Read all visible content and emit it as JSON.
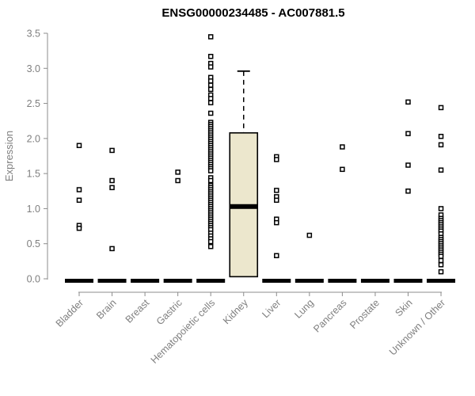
{
  "chart_data": {
    "type": "boxplot",
    "title": "ENSG00000234485 - AC007881.5",
    "ylabel": "Expression",
    "xlabel": "",
    "ylim": [
      0,
      3.5
    ],
    "ytick_labels": [
      "0.0",
      "0.5",
      "1.0",
      "1.5",
      "2.0",
      "2.5",
      "3.0",
      "3.5"
    ],
    "grid": false,
    "legend": "none",
    "categories": [
      "Bladder",
      "Brain",
      "Breast",
      "Gastric",
      "Hematopoietic cells",
      "Kidney",
      "Liver",
      "Lung",
      "Pancreas",
      "Prostate",
      "Skin",
      "Unknown / Other"
    ],
    "series": [
      {
        "category": "Bladder",
        "median": 0.0,
        "outliers": [
          1.9,
          1.27,
          1.12,
          0.76,
          0.72
        ]
      },
      {
        "category": "Brain",
        "median": 0.0,
        "outliers": [
          1.83,
          1.4,
          1.3,
          0.43
        ]
      },
      {
        "category": "Breast",
        "median": 0.0,
        "outliers": []
      },
      {
        "category": "Gastric",
        "median": 0.0,
        "outliers": [
          1.52,
          1.4
        ]
      },
      {
        "category": "Hematopoietic cells",
        "median": 0.0,
        "outliers": [
          3.45,
          3.17,
          3.07,
          3.02,
          2.87,
          2.82,
          2.76,
          2.7,
          2.62,
          2.57,
          2.51,
          2.36,
          2.23,
          2.2,
          2.17,
          2.14,
          2.11,
          2.08,
          2.05,
          2.02,
          1.99,
          1.96,
          1.93,
          1.9,
          1.87,
          1.84,
          1.81,
          1.78,
          1.75,
          1.72,
          1.69,
          1.66,
          1.63,
          1.6,
          1.57,
          1.54,
          1.44,
          1.4,
          1.33,
          1.3,
          1.27,
          1.24,
          1.21,
          1.18,
          1.15,
          1.12,
          1.09,
          1.06,
          1.03,
          1.0,
          0.97,
          0.94,
          0.91,
          0.88,
          0.85,
          0.82,
          0.79,
          0.76,
          0.73,
          0.7,
          0.65,
          0.61,
          0.57,
          0.53,
          0.46
        ]
      },
      {
        "category": "Kidney",
        "median": 1.03,
        "q1": 0.03,
        "q3": 2.08,
        "whisker_low": 0.03,
        "whisker_high": 2.96,
        "outliers": []
      },
      {
        "category": "Liver",
        "median": 0.0,
        "outliers": [
          1.74,
          1.7,
          1.26,
          1.17,
          1.12,
          0.85,
          0.8,
          0.33
        ]
      },
      {
        "category": "Lung",
        "median": 0.0,
        "outliers": [
          0.62
        ]
      },
      {
        "category": "Pancreas",
        "median": 0.0,
        "outliers": [
          1.88,
          1.56
        ]
      },
      {
        "category": "Prostate",
        "median": 0.0,
        "outliers": []
      },
      {
        "category": "Skin",
        "median": 0.0,
        "outliers": [
          2.52,
          2.07,
          1.62,
          1.25
        ]
      },
      {
        "category": "Unknown / Other",
        "median": 0.0,
        "outliers": [
          2.44,
          2.03,
          1.91,
          1.55,
          1.0,
          0.91,
          0.86,
          0.83,
          0.8,
          0.77,
          0.74,
          0.71,
          0.68,
          0.64,
          0.59,
          0.56,
          0.53,
          0.5,
          0.47,
          0.44,
          0.41,
          0.38,
          0.35,
          0.32,
          0.26,
          0.2,
          0.1
        ]
      }
    ],
    "colors": {
      "box_fill": "#ece7cd",
      "box_border": "#000000",
      "median_line": "#000000",
      "point_stroke": "#000000",
      "point_fill": "#ffffff",
      "axis": "#8c8c8c",
      "tick_label": "#7f7f7f",
      "title": "#000000",
      "background": "#ffffff"
    }
  }
}
